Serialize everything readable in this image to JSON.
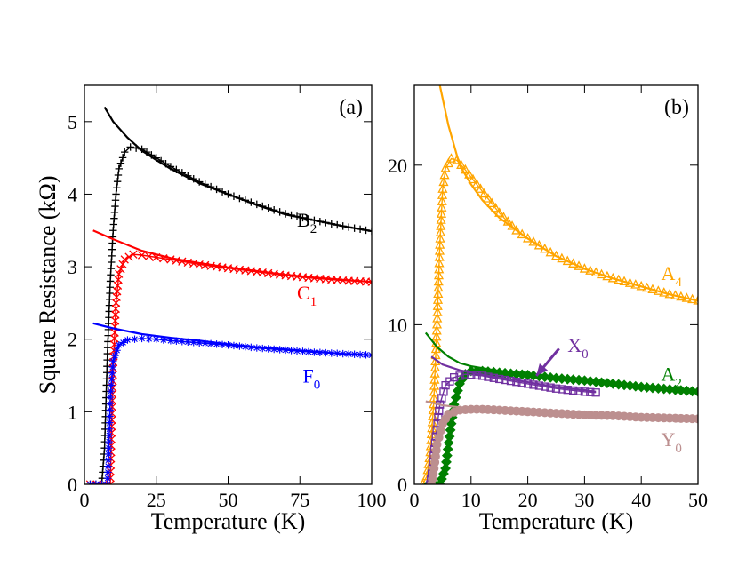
{
  "chart_data": [
    {
      "type": "line",
      "panel_label": "(a)",
      "xlabel": "Temperature (K)",
      "ylabel": "Square Resistance (kΩ)",
      "xlim": [
        0,
        100
      ],
      "ylim": [
        0,
        5.5
      ],
      "xticks": [
        0,
        25,
        50,
        75,
        100
      ],
      "yticks": [
        0,
        1,
        2,
        3,
        4,
        5
      ],
      "series": [
        {
          "name": "B",
          "subscript": "2",
          "color": "#000000",
          "marker": "plus",
          "label_at": [
            74,
            3.55
          ],
          "fit": [
            [
              7,
              5.2
            ],
            [
              10,
              5.0
            ],
            [
              15,
              4.78
            ],
            [
              20,
              4.6
            ],
            [
              25,
              4.47
            ],
            [
              30,
              4.35
            ],
            [
              40,
              4.15
            ],
            [
              50,
              4.0
            ],
            [
              60,
              3.85
            ],
            [
              70,
              3.72
            ],
            [
              80,
              3.64
            ],
            [
              90,
              3.56
            ],
            [
              100,
              3.49
            ]
          ],
          "measured": [
            [
              2,
              0.0
            ],
            [
              6,
              0.0
            ],
            [
              7,
              0.5
            ],
            [
              8,
              1.8
            ],
            [
              9,
              2.8
            ],
            [
              10,
              3.5
            ],
            [
              11,
              4.0
            ],
            [
              12,
              4.35
            ],
            [
              14,
              4.58
            ],
            [
              16,
              4.65
            ],
            [
              20,
              4.62
            ],
            [
              25,
              4.5
            ],
            [
              30,
              4.38
            ],
            [
              40,
              4.17
            ],
            [
              50,
              4.0
            ],
            [
              60,
              3.86
            ],
            [
              70,
              3.73
            ],
            [
              80,
              3.64
            ],
            [
              90,
              3.56
            ],
            [
              100,
              3.49
            ]
          ]
        },
        {
          "name": "C",
          "subscript": "1",
          "color": "#ff0000",
          "marker": "cross",
          "label_at": [
            74,
            2.55
          ],
          "fit": [
            [
              3,
              3.5
            ],
            [
              10,
              3.38
            ],
            [
              20,
              3.22
            ],
            [
              30,
              3.12
            ],
            [
              40,
              3.05
            ],
            [
              50,
              2.99
            ],
            [
              60,
              2.94
            ],
            [
              70,
              2.89
            ],
            [
              80,
              2.85
            ],
            [
              90,
              2.82
            ],
            [
              100,
              2.79
            ]
          ],
          "measured": [
            [
              2,
              0.0
            ],
            [
              9,
              0.0
            ],
            [
              9.5,
              0.8
            ],
            [
              10,
              1.6
            ],
            [
              11,
              2.5
            ],
            [
              12,
              2.9
            ],
            [
              14,
              3.1
            ],
            [
              17,
              3.17
            ],
            [
              20,
              3.16
            ],
            [
              25,
              3.13
            ],
            [
              30,
              3.1
            ],
            [
              40,
              3.03
            ],
            [
              50,
              2.98
            ],
            [
              60,
              2.93
            ],
            [
              70,
              2.88
            ],
            [
              80,
              2.84
            ],
            [
              90,
              2.81
            ],
            [
              100,
              2.79
            ]
          ]
        },
        {
          "name": "F",
          "subscript": "0",
          "color": "#0000ff",
          "marker": "asterisk",
          "label_at": [
            76,
            1.4
          ],
          "fit": [
            [
              3,
              2.22
            ],
            [
              10,
              2.15
            ],
            [
              20,
              2.07
            ],
            [
              30,
              2.02
            ],
            [
              40,
              1.98
            ],
            [
              50,
              1.93
            ],
            [
              60,
              1.89
            ],
            [
              70,
              1.86
            ],
            [
              80,
              1.83
            ],
            [
              90,
              1.8
            ],
            [
              100,
              1.78
            ]
          ],
          "measured": [
            [
              2,
              0.0
            ],
            [
              8,
              0.0
            ],
            [
              8.5,
              0.5
            ],
            [
              9,
              1.2
            ],
            [
              10,
              1.7
            ],
            [
              12,
              1.92
            ],
            [
              15,
              1.99
            ],
            [
              20,
              2.01
            ],
            [
              25,
              2.0
            ],
            [
              30,
              1.98
            ],
            [
              40,
              1.95
            ],
            [
              50,
              1.92
            ],
            [
              60,
              1.88
            ],
            [
              70,
              1.85
            ],
            [
              80,
              1.82
            ],
            [
              90,
              1.8
            ],
            [
              100,
              1.78
            ]
          ]
        }
      ]
    },
    {
      "type": "line",
      "panel_label": "(b)",
      "xlabel": "Temperature (K)",
      "ylabel": "",
      "xlim": [
        0,
        50
      ],
      "ylim": [
        0,
        25
      ],
      "xticks": [
        0,
        10,
        20,
        30,
        40,
        50
      ],
      "yticks": [
        0,
        10,
        20
      ],
      "series": [
        {
          "name": "A",
          "subscript": "4",
          "color": "#ffa500",
          "marker": "triangle",
          "label_at": [
            43.5,
            12.8
          ],
          "fit": [
            [
              4.5,
              25.0
            ],
            [
              6,
              22.5
            ],
            [
              8,
              20.0
            ],
            [
              10,
              18.8
            ],
            [
              12,
              17.8
            ],
            [
              15,
              16.7
            ],
            [
              20,
              15.4
            ],
            [
              25,
              14.3
            ],
            [
              30,
              13.5
            ],
            [
              35,
              12.9
            ],
            [
              40,
              12.4
            ],
            [
              45,
              11.9
            ],
            [
              50,
              11.5
            ]
          ],
          "measured": [
            [
              1.5,
              0.0
            ],
            [
              2.2,
              0.5
            ],
            [
              2.8,
              2.0
            ],
            [
              3.4,
              5.0
            ],
            [
              4.0,
              10.0
            ],
            [
              4.5,
              15.0
            ],
            [
              5.0,
              18.5
            ],
            [
              5.5,
              19.8
            ],
            [
              6.5,
              20.4
            ],
            [
              7.5,
              20.3
            ],
            [
              9,
              19.7
            ],
            [
              11,
              18.8
            ],
            [
              13,
              17.9
            ],
            [
              15,
              17.0
            ],
            [
              18,
              15.9
            ],
            [
              20,
              15.4
            ],
            [
              25,
              14.3
            ],
            [
              30,
              13.5
            ],
            [
              35,
              12.9
            ],
            [
              40,
              12.4
            ],
            [
              45,
              11.9
            ],
            [
              50,
              11.5
            ]
          ]
        },
        {
          "name": "A",
          "subscript": "2",
          "color": "#008000",
          "marker": "diamond",
          "label_at": [
            43.5,
            6.5
          ],
          "fit": [
            [
              2,
              9.5
            ],
            [
              4,
              8.6
            ],
            [
              6,
              8.0
            ],
            [
              8,
              7.6
            ],
            [
              10,
              7.4
            ],
            [
              15,
              7.1
            ],
            [
              20,
              6.9
            ],
            [
              25,
              6.7
            ],
            [
              30,
              6.5
            ],
            [
              35,
              6.3
            ],
            [
              40,
              6.1
            ],
            [
              45,
              5.95
            ],
            [
              50,
              5.8
            ]
          ],
          "measured": [
            [
              2.5,
              0.0
            ],
            [
              4.5,
              0.0
            ],
            [
              5.5,
              1.0
            ],
            [
              6.2,
              3.0
            ],
            [
              7,
              5.0
            ],
            [
              8,
              6.3
            ],
            [
              9,
              6.9
            ],
            [
              10,
              7.1
            ],
            [
              12,
              7.1
            ],
            [
              15,
              7.0
            ],
            [
              20,
              6.85
            ],
            [
              25,
              6.65
            ],
            [
              30,
              6.5
            ],
            [
              35,
              6.3
            ],
            [
              40,
              6.1
            ],
            [
              45,
              5.95
            ],
            [
              50,
              5.8
            ]
          ]
        },
        {
          "name": "X",
          "subscript": "0",
          "color": "#7030a0",
          "marker": "square",
          "label_at": [
            27,
            8.3
          ],
          "fit": [
            [
              3,
              8.0
            ],
            [
              5,
              7.5
            ],
            [
              8,
              7.15
            ],
            [
              10,
              7.0
            ],
            [
              15,
              6.7
            ],
            [
              20,
              6.4
            ],
            [
              25,
              6.1
            ],
            [
              30,
              5.9
            ],
            [
              32,
              5.8
            ]
          ],
          "measured": [
            [
              2.8,
              0.0
            ],
            [
              3.2,
              1.0
            ],
            [
              3.8,
              3.0
            ],
            [
              4.5,
              5.0
            ],
            [
              5.5,
              6.2
            ],
            [
              7,
              6.7
            ],
            [
              9,
              6.9
            ],
            [
              12,
              6.8
            ],
            [
              15,
              6.6
            ],
            [
              20,
              6.3
            ],
            [
              25,
              6.0
            ],
            [
              30,
              5.8
            ],
            [
              32,
              5.75
            ]
          ]
        },
        {
          "name": "Y",
          "subscript": "0",
          "color": "#bc8f8f",
          "marker": "circle",
          "label_at": [
            43.5,
            2.4
          ],
          "fit": [
            [
              2,
              5.2
            ],
            [
              5,
              4.95
            ],
            [
              10,
              4.75
            ],
            [
              20,
              4.55
            ],
            [
              30,
              4.35
            ],
            [
              40,
              4.2
            ],
            [
              50,
              4.1
            ]
          ],
          "measured": [
            [
              3,
              0.0
            ],
            [
              3.5,
              1.0
            ],
            [
              4,
              2.5
            ],
            [
              5,
              3.8
            ],
            [
              6,
              4.4
            ],
            [
              8,
              4.65
            ],
            [
              10,
              4.7
            ],
            [
              12,
              4.7
            ],
            [
              15,
              4.65
            ],
            [
              20,
              4.55
            ],
            [
              25,
              4.45
            ],
            [
              30,
              4.35
            ],
            [
              35,
              4.3
            ],
            [
              40,
              4.2
            ],
            [
              45,
              4.15
            ],
            [
              50,
              4.1
            ]
          ]
        }
      ],
      "arrow_annotation": {
        "series": "X0",
        "from": [
          25.5,
          8.5
        ],
        "to": [
          21.5,
          6.8
        ],
        "color": "#7030a0"
      }
    }
  ]
}
